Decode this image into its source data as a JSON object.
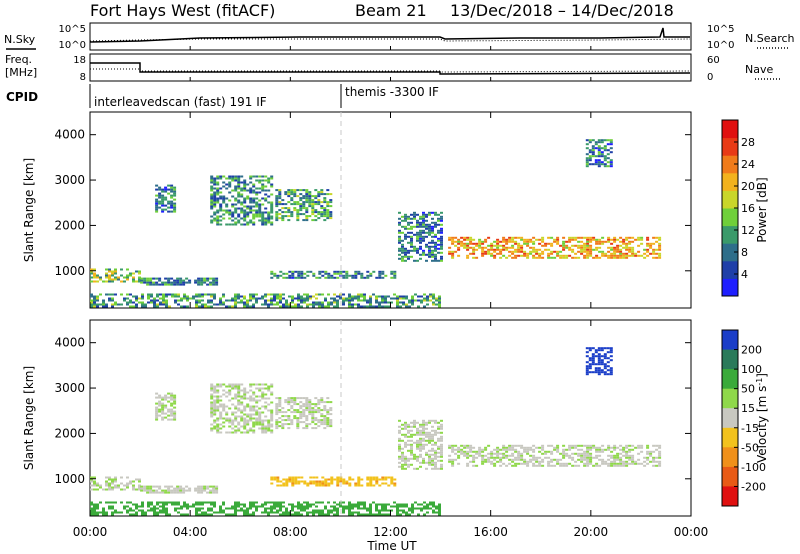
{
  "header": {
    "title": "Fort Hays West (fitACF)",
    "beam": "Beam 21",
    "date_range": "13/Dec/2018 – 14/Dec/2018"
  },
  "strip_labels": {
    "nsky": "N.Sky",
    "nsearch": "N.Search",
    "freq_line1": "Freq.",
    "freq_line2": "[MHz]",
    "nave": "Nave",
    "cpid": "CPID",
    "nsky_ticks": [
      "10^5",
      "10^0"
    ],
    "nsearch_ticks": [
      "10^5",
      "10^0"
    ],
    "freq_ticks": [
      "18",
      "8"
    ],
    "nave_ticks": [
      "60",
      "0"
    ]
  },
  "cpid_segments": [
    {
      "label": "interleavedscan (fast) 191 IF",
      "start_hour": 0
    },
    {
      "label": "themis -3300 IF",
      "start_hour": 10
    }
  ],
  "axes": {
    "xlabel": "Time UT",
    "ylabel": "Slant Range [km]",
    "x_ticks": [
      "00:00",
      "04:00",
      "08:00",
      "12:00",
      "16:00",
      "20:00",
      "00:00"
    ],
    "y_ticks": [
      "1000",
      "2000",
      "3000",
      "4000"
    ]
  },
  "colorbars": {
    "power": {
      "label": "Power [dB]",
      "ticks": [
        "4",
        "8",
        "12",
        "16",
        "20",
        "24",
        "28"
      ],
      "colors": [
        "#1f1fff",
        "#1f3fa8",
        "#2e6e8a",
        "#3a9a6a",
        "#6fcf3a",
        "#c9d62a",
        "#f2b21d",
        "#f07b1a",
        "#e83a16",
        "#e01010"
      ]
    },
    "velocity": {
      "label_main": "Velocity [m s",
      "label_sup": "-1",
      "label_end": "]",
      "ticks": [
        "200",
        "100",
        "50",
        "15",
        "-15",
        "-50",
        "-100",
        "-200"
      ],
      "colors": [
        "#1a3dc8",
        "#2a7a5a",
        "#3aaa3a",
        "#8fd84a",
        "#c8c8c0",
        "#f2c21d",
        "#f0901a",
        "#e85a16",
        "#e01010"
      ]
    }
  },
  "chart_data": {
    "type": "heatmap",
    "x_range_hours": [
      0,
      24
    ],
    "y_range_km": [
      180,
      4500
    ],
    "panels": [
      {
        "name": "Power",
        "units": "dB",
        "scale": [
          0,
          30
        ],
        "regions": [
          {
            "t0": 0.0,
            "t1": 2.0,
            "r0": 750,
            "r1": 1050,
            "value": 14
          },
          {
            "t0": 2.0,
            "t1": 5.0,
            "r0": 700,
            "r1": 850,
            "value": 9
          },
          {
            "t0": 2.6,
            "t1": 3.4,
            "r0": 2300,
            "r1": 2900,
            "value": 8
          },
          {
            "t0": 4.8,
            "t1": 7.2,
            "r0": 2000,
            "r1": 3100,
            "value": 9
          },
          {
            "t0": 7.4,
            "t1": 9.6,
            "r0": 2100,
            "r1": 2800,
            "value": 11
          },
          {
            "t0": 7.2,
            "t1": 12.2,
            "r0": 850,
            "r1": 1000,
            "value": 8
          },
          {
            "t0": 12.3,
            "t1": 14.0,
            "r0": 1200,
            "r1": 2300,
            "value": 8
          },
          {
            "t0": 14.3,
            "t1": 22.8,
            "r0": 1300,
            "r1": 1750,
            "value": 20
          },
          {
            "t0": 0.0,
            "t1": 14.0,
            "r0": 200,
            "r1": 500,
            "value": 10
          },
          {
            "t0": 19.8,
            "t1": 20.8,
            "r0": 3300,
            "r1": 3900,
            "value": 8
          }
        ]
      },
      {
        "name": "Velocity",
        "units": "m s-1",
        "scale": [
          -200,
          200
        ],
        "regions": [
          {
            "t0": 0.0,
            "t1": 2.0,
            "r0": 750,
            "r1": 1050,
            "value": 0
          },
          {
            "t0": 2.0,
            "t1": 5.0,
            "r0": 700,
            "r1": 850,
            "value": 0
          },
          {
            "t0": 2.6,
            "t1": 3.4,
            "r0": 2300,
            "r1": 2900,
            "value": 0
          },
          {
            "t0": 4.8,
            "t1": 7.2,
            "r0": 2000,
            "r1": 3100,
            "value": 0
          },
          {
            "t0": 7.4,
            "t1": 9.6,
            "r0": 2100,
            "r1": 2800,
            "value": 0
          },
          {
            "t0": 7.2,
            "t1": 12.2,
            "r0": 850,
            "r1": 1050,
            "value": -40
          },
          {
            "t0": 12.3,
            "t1": 14.0,
            "r0": 1200,
            "r1": 2300,
            "value": 0
          },
          {
            "t0": 14.3,
            "t1": 22.8,
            "r0": 1300,
            "r1": 1750,
            "value": 0
          },
          {
            "t0": 0.0,
            "t1": 14.0,
            "r0": 200,
            "r1": 500,
            "value": 30
          },
          {
            "t0": 19.8,
            "t1": 20.8,
            "r0": 3300,
            "r1": 3900,
            "value": 150
          }
        ]
      }
    ]
  }
}
